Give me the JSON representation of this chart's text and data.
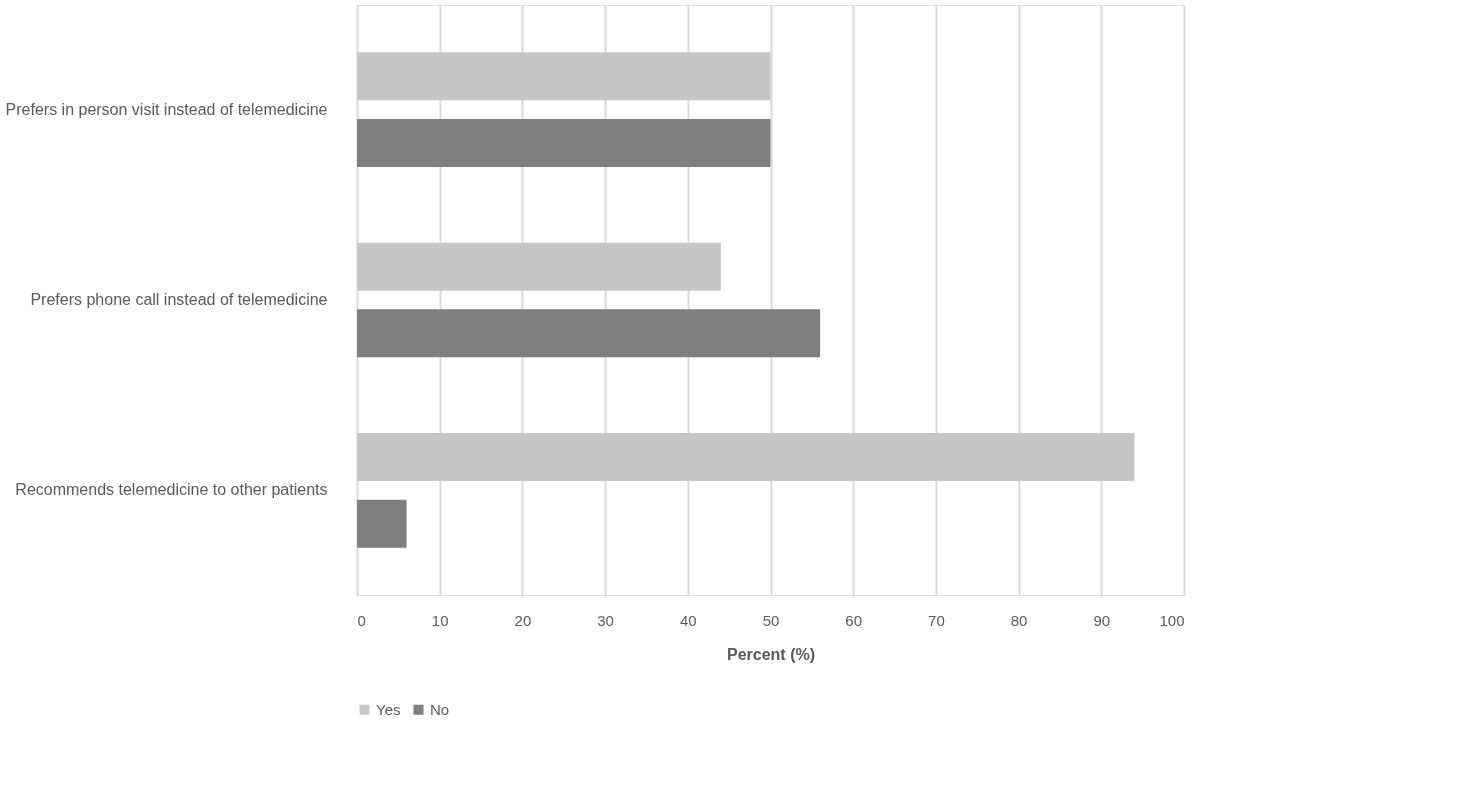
{
  "chart_data": {
    "type": "bar",
    "orientation": "horizontal",
    "categories": [
      "Prefers in person visit instead of telemedicine",
      "Prefers phone call instead of telemedicine",
      "Recommends telemedicine to other patients"
    ],
    "series": [
      {
        "name": "Yes",
        "color": "#c6c6c6",
        "values": [
          50,
          44,
          94
        ]
      },
      {
        "name": "No",
        "color": "#7f7f7f",
        "values": [
          50,
          56,
          6
        ]
      }
    ],
    "xlabel": "Percent (%)",
    "xlim": [
      0,
      100
    ],
    "xticks": [
      0,
      10,
      20,
      30,
      40,
      50,
      60,
      70,
      80,
      90,
      100
    ],
    "grid": "x",
    "legend": "bottom"
  }
}
